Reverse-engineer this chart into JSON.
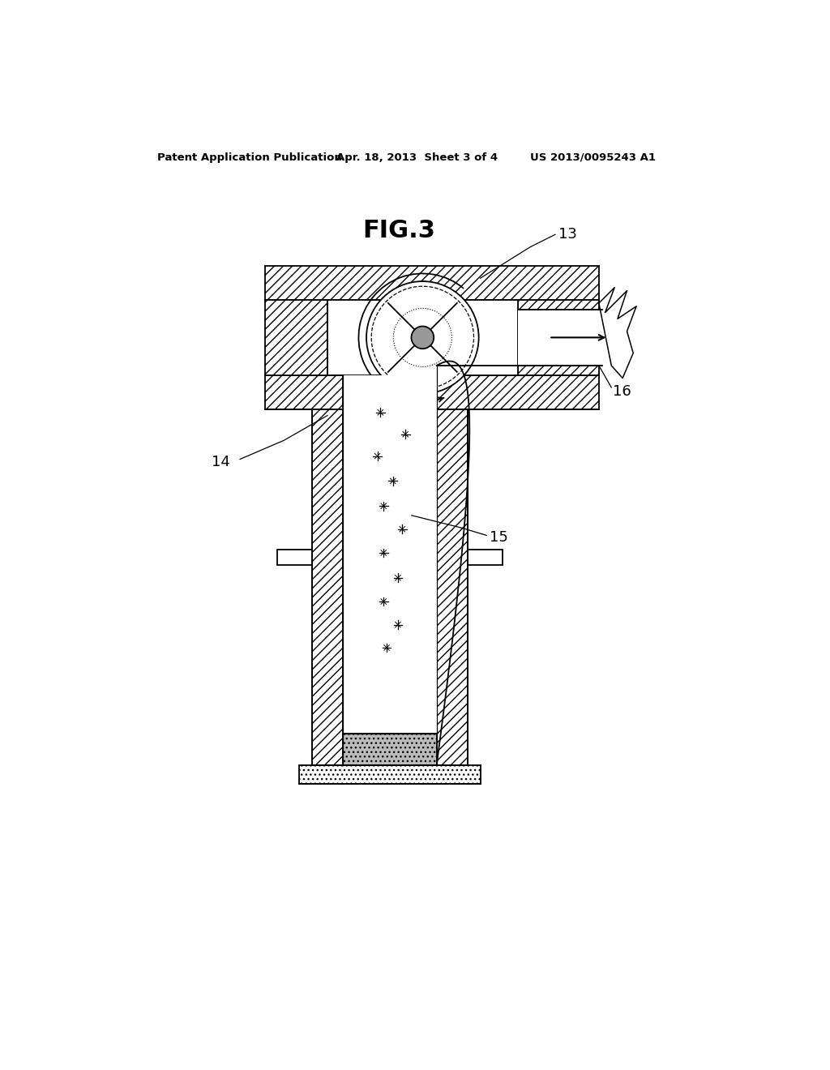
{
  "title": "FIG.3",
  "header_left": "Patent Application Publication",
  "header_center": "Apr. 18, 2013  Sheet 3 of 4",
  "header_right": "US 2013/0095243 A1",
  "bg_color": "#ffffff",
  "label_13": "13",
  "label_14": "14",
  "label_15": "15",
  "label_16": "16",
  "line_color": "#000000",
  "hatch_diagonal": "///",
  "hatch_cross": "xxx",
  "hatch_dot": "...",
  "gray_pool": "#bbbbbb",
  "gray_hub": "#999999"
}
